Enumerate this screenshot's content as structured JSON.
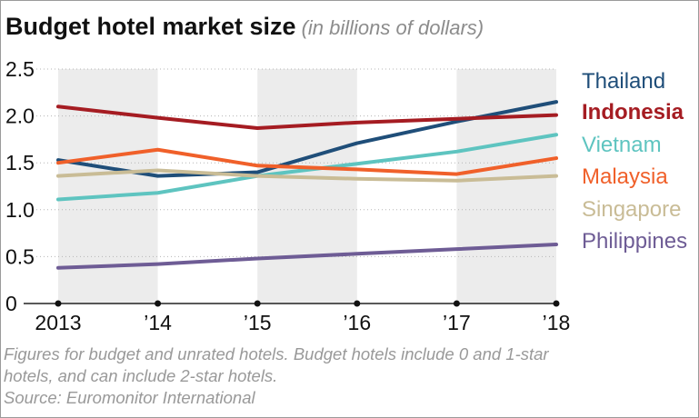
{
  "chart_data": {
    "type": "line",
    "title": "Budget hotel market size",
    "subtitle": "(in billions of dollars)",
    "x": [
      "2013",
      "’14",
      "’15",
      "’16",
      "’17",
      "’18"
    ],
    "ylim": [
      0,
      2.5
    ],
    "yticks": [
      "0",
      "0.5",
      "1.0",
      "1.5",
      "2.0",
      "2.5"
    ],
    "grid": true,
    "legend": "right",
    "series": [
      {
        "name": "Thailand",
        "color": "#1f4e79",
        "bold": false,
        "values": [
          1.53,
          1.36,
          1.4,
          1.71,
          1.94,
          2.15
        ]
      },
      {
        "name": "Indonesia",
        "color": "#a51c22",
        "bold": true,
        "values": [
          2.1,
          1.98,
          1.87,
          1.93,
          1.97,
          2.01
        ]
      },
      {
        "name": "Vietnam",
        "color": "#5ec4c0",
        "bold": false,
        "values": [
          1.11,
          1.18,
          1.36,
          1.49,
          1.62,
          1.8
        ]
      },
      {
        "name": "Malaysia",
        "color": "#f0602a",
        "bold": false,
        "values": [
          1.5,
          1.64,
          1.47,
          1.43,
          1.38,
          1.55
        ]
      },
      {
        "name": "Singapore",
        "color": "#c9bc96",
        "bold": false,
        "values": [
          1.36,
          1.42,
          1.36,
          1.33,
          1.31,
          1.36
        ]
      },
      {
        "name": "Philippines",
        "color": "#6e5c95",
        "bold": false,
        "values": [
          0.38,
          0.42,
          0.48,
          0.53,
          0.58,
          0.63
        ]
      }
    ]
  },
  "notes": [
    "Figures for budget and unrated hotels. Budget hotels include 0 and 1-star",
    "hotels, and can include 2-star hotels.",
    "Source: Euromonitor International"
  ]
}
